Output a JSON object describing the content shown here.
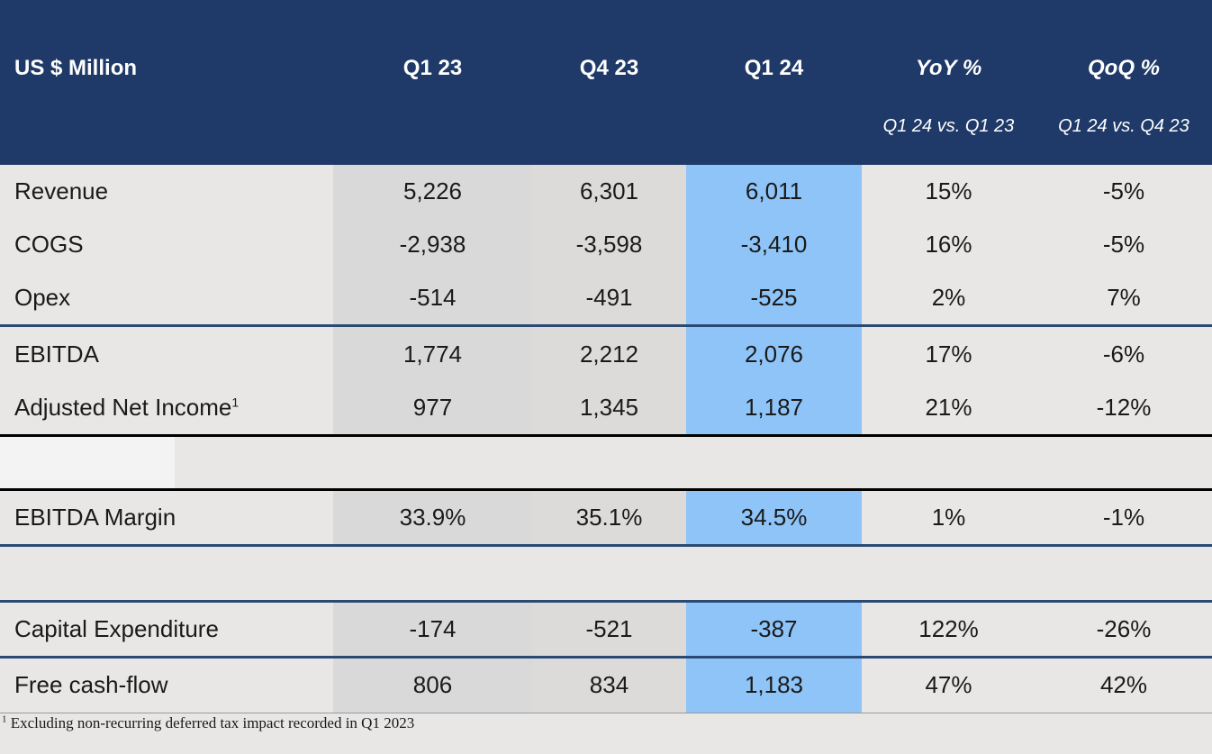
{
  "header": {
    "label": "US $ Million",
    "columns": [
      "Q1 23",
      "Q4 23",
      "Q1 24",
      "YoY %",
      "QoQ %"
    ],
    "subtitles": [
      "Q1 24 vs. Q1 23",
      "Q1 24 vs. Q4 23"
    ]
  },
  "rows": [
    {
      "label": "Revenue",
      "values": [
        "5,226",
        "6,301",
        "6,011",
        "15%",
        "-5%"
      ]
    },
    {
      "label": "COGS",
      "values": [
        "-2,938",
        "-3,598",
        "-3,410",
        "16%",
        "-5%"
      ]
    },
    {
      "label": "Opex",
      "values": [
        "-514",
        "-491",
        "-525",
        "2%",
        "7%"
      ]
    },
    {
      "label": "EBITDA",
      "values": [
        "1,774",
        "2,212",
        "2,076",
        "17%",
        "-6%"
      ]
    },
    {
      "label": "Adjusted Net Income",
      "label_sup": "1",
      "values": [
        "977",
        "1,345",
        "1,187",
        "21%",
        "-12%"
      ]
    },
    {
      "label": "EBITDA Margin",
      "values": [
        "33.9%",
        "35.1%",
        "34.5%",
        "1%",
        "-1%"
      ]
    },
    {
      "label": "Capital Expenditure",
      "values": [
        "-174",
        "-521",
        "-387",
        "122%",
        "-26%"
      ]
    },
    {
      "label": "Free cash-flow",
      "values": [
        "806",
        "834",
        "1,183",
        "47%",
        "42%"
      ]
    }
  ],
  "footnote": {
    "marker": "1",
    "text": "Excluding non-recurring deferred tax impact recorded in Q1 2023"
  },
  "colors": {
    "header_bg": "#1f3a68",
    "highlight_col": "#8ec4f7",
    "gray_col": "#d9d9d9",
    "row_bg": "#e8e7e5",
    "divider_blue": "#2b4a73",
    "divider_black": "#000000"
  }
}
